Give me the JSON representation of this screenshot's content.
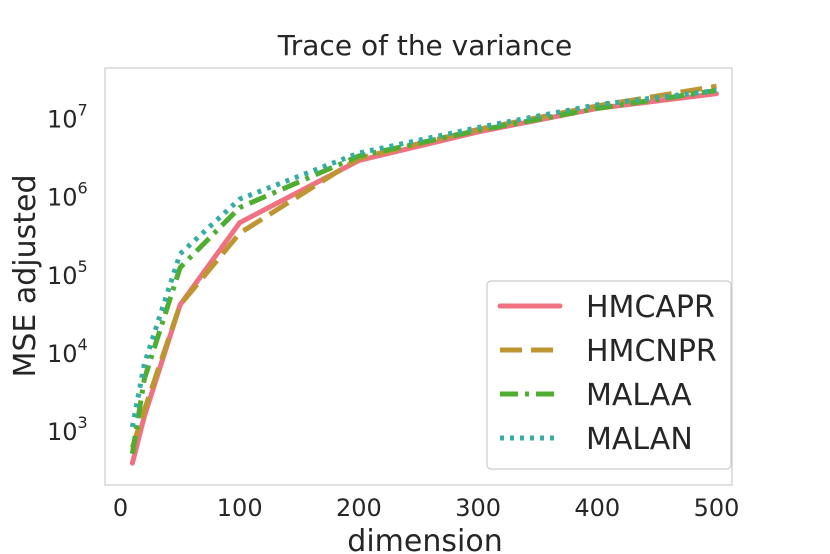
{
  "chart_data": {
    "type": "line",
    "title": "Trace of the variance",
    "xlabel": "dimension",
    "ylabel": "MSE adjusted",
    "xlim": [
      -13,
      513
    ],
    "ylim_log10": [
      2.3,
      7.63
    ],
    "yscale": "log",
    "x_ticks": [
      0,
      100,
      200,
      300,
      400,
      500
    ],
    "x_tick_labels": [
      "0",
      "100",
      "200",
      "300",
      "400",
      "500"
    ],
    "y_ticks_log10": [
      3,
      4,
      5,
      6,
      7
    ],
    "y_tick_bases": [
      "10",
      "10",
      "10",
      "10",
      "10"
    ],
    "y_tick_exponents": [
      "3",
      "4",
      "5",
      "6",
      "7"
    ],
    "grid": false,
    "legend_location": "lower-right",
    "x": [
      10,
      20,
      50,
      100,
      200,
      300,
      400,
      500
    ],
    "series": [
      {
        "name": "HMCAPR",
        "color": "#f07182",
        "style": "solid",
        "values": [
          380,
          1500,
          40000,
          450000,
          2800000,
          6500000,
          13000000,
          20000000
        ]
      },
      {
        "name": "HMCNPR",
        "color": "#bd9632",
        "style": "dashed",
        "values": [
          600,
          1800,
          40000,
          330000,
          3000000,
          7000000,
          14000000,
          25000000
        ]
      },
      {
        "name": "MALAA",
        "color": "#4fad2f",
        "style": "dashdot",
        "values": [
          500,
          4500,
          120000,
          700000,
          3200000,
          6800000,
          13000000,
          22000000
        ]
      },
      {
        "name": "MALAN",
        "color": "#36ada4",
        "style": "dotted",
        "values": [
          1100,
          7000,
          180000,
          900000,
          3500000,
          7400000,
          14500000,
          22000000
        ]
      }
    ]
  }
}
